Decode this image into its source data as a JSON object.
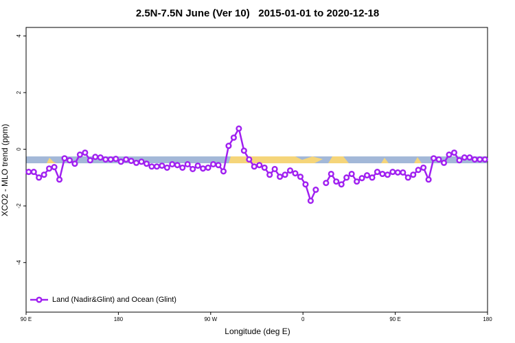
{
  "chart_data": {
    "type": "line",
    "title": "2.5N-7.5N June (Ver 10)   2015-01-01 to 2020-12-18",
    "xlabel": "Longitude (deg E)",
    "ylabel": "XCO2 - MLO trend (ppm)",
    "x": [
      92.5,
      97.5,
      102.5,
      107.5,
      112.5,
      117.5,
      122.5,
      127.5,
      132.5,
      137.5,
      142.5,
      147.5,
      152.5,
      157.5,
      162.5,
      167.5,
      172.5,
      177.5,
      182.5,
      187.5,
      192.5,
      197.5,
      202.5,
      207.5,
      212.5,
      217.5,
      222.5,
      227.5,
      232.5,
      237.5,
      242.5,
      247.5,
      252.5,
      257.5,
      262.5,
      267.5,
      272.5,
      277.5,
      282.5,
      287.5,
      292.5,
      297.5,
      302.5,
      307.5,
      312.5,
      317.5,
      322.5,
      327.5,
      332.5,
      337.5,
      342.5,
      347.5,
      352.5,
      357.5,
      362.5,
      367.5,
      372.5,
      377.5,
      382.5,
      387.5,
      392.5,
      397.5,
      402.5,
      407.5,
      412.5,
      417.5,
      422.5,
      427.5,
      432.5,
      437.5,
      442.5,
      447.5,
      452.5,
      457.5,
      462.5,
      467.5,
      472.5,
      477.5,
      482.5,
      487.5,
      492.5,
      497.5,
      502.5,
      507.5,
      512.5,
      517.5,
      522.5,
      527.5,
      532.5,
      537.5
    ],
    "series": [
      {
        "name": "Land (Nadir&Glint) and Ocean (Glint)",
        "color": "#a020f0",
        "values": [
          -0.8,
          -0.8,
          -1.0,
          -0.9,
          -0.68,
          -0.63,
          -1.07,
          -0.32,
          -0.39,
          -0.51,
          -0.19,
          -0.12,
          -0.39,
          -0.27,
          -0.29,
          -0.36,
          -0.36,
          -0.34,
          -0.44,
          -0.36,
          -0.41,
          -0.48,
          -0.44,
          -0.51,
          -0.61,
          -0.61,
          -0.58,
          -0.65,
          -0.53,
          -0.56,
          -0.65,
          -0.53,
          -0.7,
          -0.58,
          -0.68,
          -0.65,
          -0.53,
          -0.56,
          -0.78,
          0.12,
          0.41,
          0.73,
          -0.05,
          -0.36,
          -0.61,
          -0.56,
          -0.65,
          -0.9,
          -0.7,
          -0.97,
          -0.9,
          -0.75,
          -0.85,
          -0.97,
          -1.24,
          -1.82,
          -1.43,
          null,
          -1.19,
          -0.87,
          -1.14,
          -1.24,
          -1.0,
          -0.87,
          -1.14,
          -1.02,
          -0.92,
          -1.0,
          -0.8,
          -0.87,
          -0.9,
          -0.8,
          -0.82,
          -0.82,
          -1.0,
          -0.9,
          -0.73,
          -0.65,
          -1.07,
          -0.32,
          -0.36,
          -0.48,
          -0.19,
          -0.12,
          -0.39,
          -0.29,
          -0.29,
          -0.36,
          -0.36,
          -0.36
        ]
      }
    ],
    "xlim": [
      90,
      540
    ],
    "xticks": [
      {
        "value": 90,
        "label": "90 E"
      },
      180,
      {
        "value": 270,
        "label": "90 W"
      },
      {
        "value": 360,
        "label": "0"
      },
      {
        "value": 450,
        "label": "90 E"
      },
      {
        "value": 540,
        "label": "180"
      }
    ],
    "ylim": [
      -5.75,
      4.3
    ],
    "yticks": [
      -4,
      -2,
      0,
      2,
      4
    ],
    "legend": "bottomleft"
  }
}
